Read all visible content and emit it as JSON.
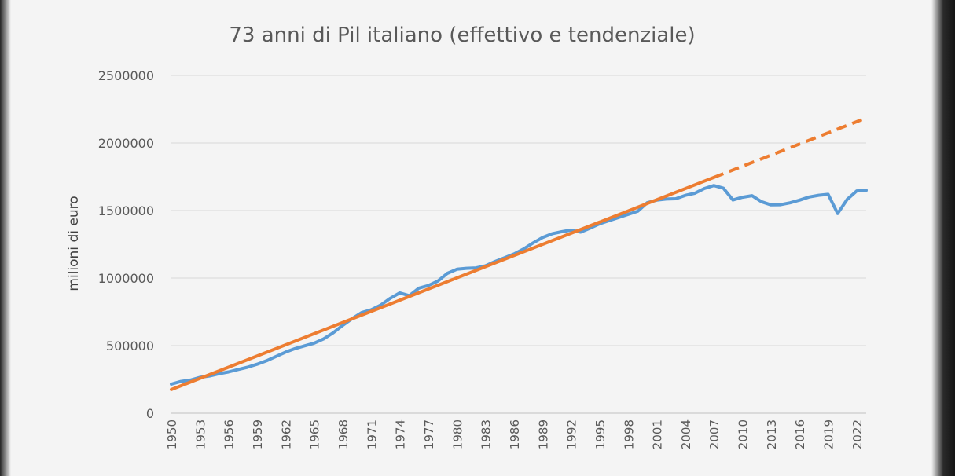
{
  "chart_data": {
    "type": "line",
    "title": "73 anni di Pil italiano (effettivo e tendenziale)",
    "xlabel": "",
    "ylabel": "milioni di euro",
    "ylim": [
      0,
      2500000
    ],
    "y_ticks": [
      "0",
      "500000",
      "1000000",
      "1500000",
      "2000000",
      "2500000"
    ],
    "x_tick_labels": [
      "1950",
      "1953",
      "1956",
      "1959",
      "1962",
      "1965",
      "1968",
      "1971",
      "1974",
      "1977",
      "1980",
      "1983",
      "1986",
      "1989",
      "1992",
      "1995",
      "1998",
      "2001",
      "2004",
      "2007",
      "2010",
      "2013",
      "2016",
      "2019",
      "2022"
    ],
    "grid": true,
    "legend": "none",
    "series": [
      {
        "color": "#5b9bd5",
        "style": "solid",
        "points": [
          [
            1950,
            215000
          ],
          [
            1951,
            235000
          ],
          [
            1952,
            245000
          ],
          [
            1953,
            265000
          ],
          [
            1954,
            275000
          ],
          [
            1955,
            292000
          ],
          [
            1956,
            305000
          ],
          [
            1957,
            323000
          ],
          [
            1958,
            340000
          ],
          [
            1959,
            362000
          ],
          [
            1960,
            388000
          ],
          [
            1961,
            420000
          ],
          [
            1962,
            452000
          ],
          [
            1963,
            478000
          ],
          [
            1964,
            498000
          ],
          [
            1965,
            518000
          ],
          [
            1966,
            550000
          ],
          [
            1967,
            595000
          ],
          [
            1968,
            650000
          ],
          [
            1969,
            700000
          ],
          [
            1970,
            745000
          ],
          [
            1971,
            765000
          ],
          [
            1972,
            800000
          ],
          [
            1973,
            850000
          ],
          [
            1974,
            890000
          ],
          [
            1975,
            870000
          ],
          [
            1976,
            925000
          ],
          [
            1977,
            945000
          ],
          [
            1978,
            978000
          ],
          [
            1979,
            1035000
          ],
          [
            1980,
            1065000
          ],
          [
            1981,
            1072000
          ],
          [
            1982,
            1075000
          ],
          [
            1983,
            1090000
          ],
          [
            1984,
            1122000
          ],
          [
            1985,
            1150000
          ],
          [
            1986,
            1178000
          ],
          [
            1987,
            1215000
          ],
          [
            1988,
            1260000
          ],
          [
            1989,
            1300000
          ],
          [
            1990,
            1328000
          ],
          [
            1991,
            1343000
          ],
          [
            1992,
            1355000
          ],
          [
            1993,
            1340000
          ],
          [
            1994,
            1370000
          ],
          [
            1995,
            1402000
          ],
          [
            1996,
            1425000
          ],
          [
            1997,
            1448000
          ],
          [
            1998,
            1472000
          ],
          [
            1999,
            1495000
          ],
          [
            2000,
            1558000
          ],
          [
            2001,
            1577000
          ],
          [
            2002,
            1585000
          ],
          [
            2003,
            1587000
          ],
          [
            2004,
            1612000
          ],
          [
            2005,
            1628000
          ],
          [
            2006,
            1663000
          ],
          [
            2007,
            1685000
          ],
          [
            2008,
            1665000
          ],
          [
            2009,
            1578000
          ],
          [
            2010,
            1598000
          ],
          [
            2011,
            1610000
          ],
          [
            2012,
            1565000
          ],
          [
            2013,
            1542000
          ],
          [
            2014,
            1543000
          ],
          [
            2015,
            1557000
          ],
          [
            2016,
            1577000
          ],
          [
            2017,
            1600000
          ],
          [
            2018,
            1613000
          ],
          [
            2019,
            1620000
          ],
          [
            2020,
            1478000
          ],
          [
            2021,
            1582000
          ],
          [
            2022,
            1645000
          ],
          [
            2023,
            1650000
          ]
        ]
      },
      {
        "color": "#ed7d31",
        "style": "solid",
        "points": [
          [
            1950,
            175000
          ],
          [
            2007,
            1745000
          ]
        ]
      },
      {
        "color": "#ed7d31",
        "style": "dashed",
        "points": [
          [
            2007,
            1745000
          ],
          [
            2023,
            2185000
          ]
        ]
      }
    ]
  }
}
